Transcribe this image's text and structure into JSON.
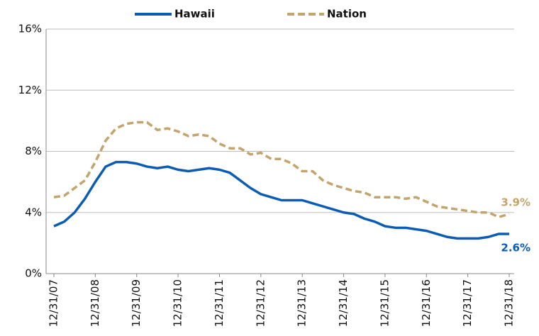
{
  "chart_data": {
    "type": "line",
    "categories": [
      "12/31/07",
      null,
      null,
      null,
      "12/31/08",
      null,
      null,
      null,
      "12/31/09",
      null,
      null,
      null,
      "12/31/10",
      null,
      null,
      null,
      "12/31/11",
      null,
      null,
      null,
      "12/31/12",
      null,
      null,
      null,
      "12/31/13",
      null,
      null,
      null,
      "12/31/14",
      null,
      null,
      null,
      "12/31/15",
      null,
      null,
      null,
      "12/31/16",
      null,
      null,
      null,
      "12/31/17",
      null,
      null,
      null,
      "12/31/18"
    ],
    "series": [
      {
        "name": "Hawaii",
        "color": "#0b5cb5",
        "style": "solid",
        "values": [
          3.1,
          3.4,
          4.0,
          4.9,
          6.0,
          7.0,
          7.3,
          7.3,
          7.2,
          7.0,
          6.9,
          7.0,
          6.8,
          6.7,
          6.8,
          6.9,
          6.8,
          6.6,
          6.1,
          5.6,
          5.2,
          5.0,
          4.8,
          4.8,
          4.8,
          4.6,
          4.4,
          4.2,
          4.0,
          3.9,
          3.6,
          3.4,
          3.1,
          3.0,
          3.0,
          2.9,
          2.8,
          2.6,
          2.4,
          2.3,
          2.3,
          2.3,
          2.4,
          2.6,
          2.6
        ],
        "value_labels": [
          null,
          null,
          null,
          null,
          null,
          null,
          null,
          null,
          null,
          null,
          null,
          null,
          null,
          null,
          null,
          null,
          null,
          null,
          null,
          null,
          null,
          null,
          null,
          null,
          null,
          null,
          null,
          null,
          null,
          null,
          null,
          null,
          null,
          null,
          null,
          null,
          null,
          null,
          null,
          null,
          null,
          null,
          null,
          null,
          "2.6%"
        ]
      },
      {
        "name": "Nation",
        "color": "#c4a46a",
        "style": "dashed",
        "values": [
          5.0,
          5.1,
          5.6,
          6.1,
          7.3,
          8.7,
          9.5,
          9.8,
          9.9,
          9.9,
          9.4,
          9.5,
          9.3,
          9.0,
          9.1,
          9.0,
          8.5,
          8.2,
          8.2,
          7.8,
          7.9,
          7.5,
          7.5,
          7.2,
          6.7,
          6.7,
          6.1,
          5.8,
          5.6,
          5.4,
          5.3,
          5.0,
          5.0,
          5.0,
          4.9,
          5.0,
          4.7,
          4.4,
          4.3,
          4.2,
          4.1,
          4.0,
          4.0,
          3.7,
          3.9
        ],
        "value_labels": [
          null,
          null,
          null,
          null,
          null,
          null,
          null,
          null,
          null,
          null,
          null,
          null,
          null,
          null,
          null,
          null,
          null,
          null,
          null,
          null,
          null,
          null,
          null,
          null,
          null,
          null,
          null,
          null,
          null,
          null,
          null,
          null,
          null,
          null,
          null,
          null,
          null,
          null,
          null,
          null,
          null,
          null,
          null,
          null,
          "3.9%"
        ]
      }
    ],
    "ylim": [
      0,
      16
    ],
    "yticks": [
      {
        "value": 0,
        "label": "0%"
      },
      {
        "value": 4,
        "label": "4%"
      },
      {
        "value": 8,
        "label": "8%"
      },
      {
        "value": 12,
        "label": "12%"
      },
      {
        "value": 16,
        "label": "16%"
      }
    ],
    "grid": true,
    "legend": "top"
  }
}
